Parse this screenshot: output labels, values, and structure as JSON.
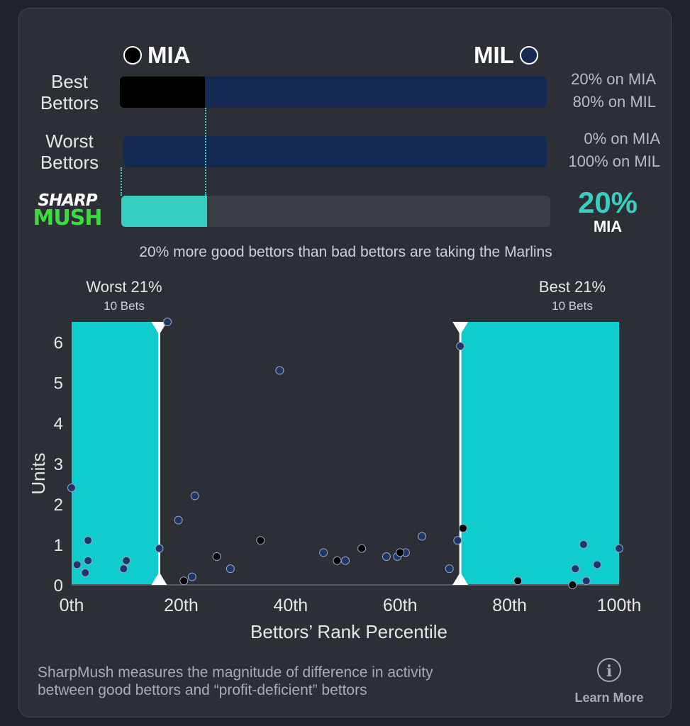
{
  "teams": {
    "left": {
      "name": "MIA",
      "dot_color": "#000000"
    },
    "right": {
      "name": "MIL",
      "dot_color": "#152a52"
    }
  },
  "rows": [
    {
      "label_line1": "Best",
      "label_line2": "Bettors",
      "left_pct_text": "20% on MIA",
      "right_pct_text": "80% on MIL",
      "left_share": 0.2
    },
    {
      "label_line1": "Worst",
      "label_line2": "Bettors",
      "left_pct_text": "0% on MIA",
      "right_pct_text": "100% on MIL",
      "left_share": 0.0
    }
  ],
  "sharpmush": {
    "logo_line1": "SHARP",
    "logo_line2": "MUSH",
    "value_text": "20%",
    "value_share": 0.2,
    "team": "MIA",
    "summary": "20% more good bettors than bad bettors are taking the Marlins"
  },
  "colors": {
    "mia": "#000000",
    "mil": "#152a52",
    "teal": "#10cccc",
    "accent": "#37d0c0",
    "background": "#2c2f36"
  },
  "chart_data": {
    "type": "scatter",
    "xlabel": "Bettors’ Rank Percentile",
    "ylabel": "Units",
    "x_ticks": [
      "0th",
      "20th",
      "40th",
      "60th",
      "80th",
      "100th"
    ],
    "x_tick_values": [
      0,
      20,
      40,
      60,
      80,
      100
    ],
    "y_ticks": [
      "0",
      "1",
      "2",
      "3",
      "4",
      "5",
      "6"
    ],
    "y_tick_values": [
      0,
      1,
      2,
      3,
      4,
      5,
      6
    ],
    "xlim": [
      0,
      100
    ],
    "ylim": [
      0,
      6.5
    ],
    "highlight_regions": [
      {
        "label": "Worst 21%",
        "sublabel": "10 Bets",
        "x_start": 0,
        "x_end": 16
      },
      {
        "label": "Best 21%",
        "sublabel": "10 Bets",
        "x_start": 71,
        "x_end": 100
      }
    ],
    "series": [
      {
        "team": "MIL",
        "color": "#1e3766",
        "points": [
          [
            0,
            2.4
          ],
          [
            1,
            0.5
          ],
          [
            2.5,
            0.3
          ],
          [
            3,
            1.1
          ],
          [
            3,
            0.6
          ],
          [
            9.5,
            0.4
          ],
          [
            10,
            0.6
          ],
          [
            16,
            0.9
          ],
          [
            17.5,
            6.5
          ],
          [
            19.5,
            1.6
          ],
          [
            22,
            0.2
          ],
          [
            22.5,
            2.2
          ],
          [
            29,
            0.4
          ],
          [
            38,
            5.3
          ],
          [
            46,
            0.8
          ],
          [
            50,
            0.6
          ],
          [
            57.5,
            0.7
          ],
          [
            59.5,
            0.7
          ],
          [
            61,
            0.8
          ],
          [
            64,
            1.2
          ],
          [
            69,
            0.4
          ],
          [
            70.5,
            1.1
          ],
          [
            71,
            5.9
          ],
          [
            92,
            0.4
          ],
          [
            93.5,
            1.0
          ],
          [
            94,
            0.1
          ],
          [
            96,
            0.5
          ],
          [
            100,
            0.9
          ]
        ]
      },
      {
        "team": "MIA",
        "color": "#000000",
        "points": [
          [
            20.5,
            0.1
          ],
          [
            26.5,
            0.7
          ],
          [
            34.5,
            1.1
          ],
          [
            48.5,
            0.6
          ],
          [
            53,
            0.9
          ],
          [
            60,
            0.8
          ],
          [
            71.5,
            1.4
          ],
          [
            81.5,
            0.1
          ],
          [
            91.5,
            0.0
          ]
        ]
      }
    ]
  },
  "footer": {
    "text_line1": "SharpMush measures the magnitude of difference in activity",
    "text_line2": "between good bettors and “profit-deficient” bettors",
    "learn_more": "Learn More",
    "info_icon": "i"
  }
}
